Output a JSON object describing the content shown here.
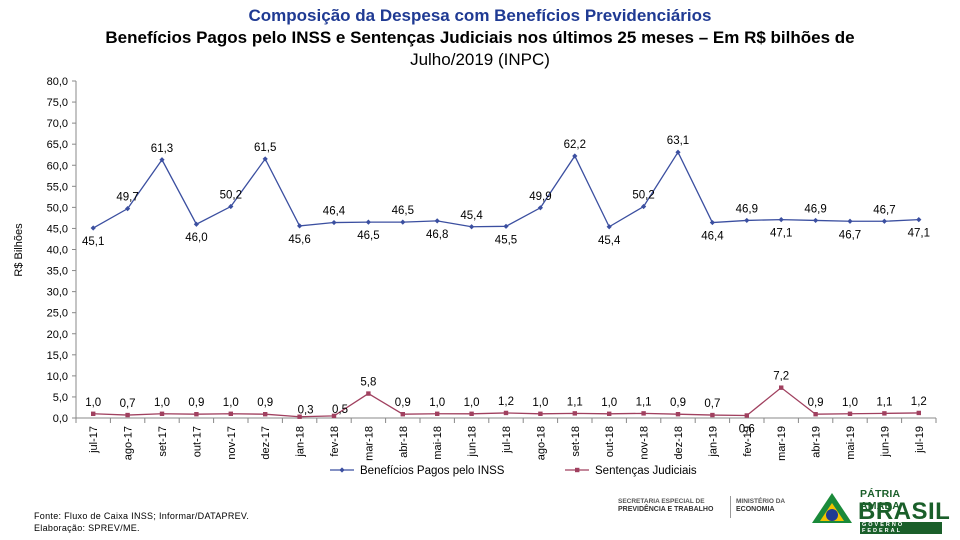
{
  "header": {
    "line1": "Composição da Despesa com Benefícios Previdenciários",
    "line2": "Benefícios Pagos pelo INSS e Sentenças Judiciais nos últimos 25 meses – Em R$ bilhões de",
    "line3": "Julho/2019 (INPC)"
  },
  "chart_data": {
    "type": "line",
    "ylabel": "R$ Bilhões",
    "xlabel": "",
    "ylim": [
      0,
      80
    ],
    "ytick_step": 5,
    "ytick_labels": [
      "0,0",
      "5,0",
      "10,0",
      "15,0",
      "20,0",
      "25,0",
      "30,0",
      "35,0",
      "40,0",
      "45,0",
      "50,0",
      "55,0",
      "60,0",
      "65,0",
      "70,0",
      "75,0",
      "80,0"
    ],
    "categories": [
      "jul-17",
      "ago-17",
      "set-17",
      "out-17",
      "nov-17",
      "dez-17",
      "jan-18",
      "fev-18",
      "mar-18",
      "abr-18",
      "mai-18",
      "jun-18",
      "jul-18",
      "ago-18",
      "set-18",
      "out-18",
      "nov-18",
      "dez-18",
      "jan-19",
      "fev-19",
      "mar-19",
      "abr-19",
      "mai-19",
      "jun-19",
      "jul-19"
    ],
    "series": [
      {
        "name": "Benefícios Pagos pelo INSS",
        "color": "#3b4fa0",
        "values": [
          45.1,
          49.7,
          61.3,
          46.0,
          50.2,
          61.5,
          45.6,
          46.4,
          46.5,
          46.5,
          46.8,
          45.4,
          45.5,
          49.9,
          62.2,
          45.4,
          50.2,
          63.1,
          46.4,
          46.9,
          47.1,
          46.9,
          46.7,
          46.7,
          47.1
        ],
        "labels": [
          "45,1",
          "49,7",
          "61,3",
          "46,0",
          "50,2",
          "61,5",
          "45,6",
          "46,4",
          "46,5",
          "46,5",
          "46,8",
          "45,4",
          "45,5",
          "49,9",
          "62,2",
          "45,4",
          "50,2",
          "63,1",
          "46,4",
          "46,9",
          "47,1",
          "46,9",
          "46,7",
          "46,7",
          "47,1"
        ],
        "label_pos": [
          "below",
          "above",
          "above",
          "below",
          "above",
          "above",
          "below",
          "above",
          "below",
          "above",
          "below",
          "above",
          "below",
          "above",
          "above",
          "below",
          "above",
          "above",
          "below",
          "above",
          "below",
          "above",
          "below",
          "above",
          "below"
        ]
      },
      {
        "name": "Sentenças Judiciais",
        "color": "#a0405f",
        "values": [
          1.0,
          0.7,
          1.0,
          0.9,
          1.0,
          0.9,
          0.3,
          0.5,
          5.8,
          0.9,
          1.0,
          1.0,
          1.2,
          1.0,
          1.1,
          1.0,
          1.1,
          0.9,
          0.7,
          0.6,
          7.2,
          0.9,
          1.0,
          1.1,
          1.2
        ],
        "labels": [
          "1,0",
          "0,7",
          "1,0",
          "0,9",
          "1,0",
          "0,9",
          "0,3",
          "0,5",
          "5,8",
          "0,9",
          "1,0",
          "1,0",
          "1,2",
          "1,0",
          "1,1",
          "1,0",
          "1,1",
          "0,9",
          "0,7",
          "0,6",
          "7,2",
          "0,9",
          "1,0",
          "1,1",
          "1,2"
        ],
        "label_pos": [
          "above",
          "above",
          "above",
          "above",
          "above",
          "above",
          "right",
          "right",
          "above",
          "above",
          "above",
          "above",
          "above",
          "above",
          "above",
          "above",
          "above",
          "above",
          "above",
          "below",
          "above",
          "above",
          "above",
          "above",
          "above"
        ]
      }
    ],
    "legend_position": "bottom-center"
  },
  "footer": {
    "source": "Fonte: Fluxo de Caixa INSS; Informar/DATAPREV.",
    "elaboration": "Elaboração: SPREV/ME."
  },
  "logos": {
    "secretaria_line1": "SECRETARIA ESPECIAL DE",
    "secretaria_line2": "PREVIDÊNCIA E TRABALHO",
    "ministerio_line1": "MINISTÉRIO DA",
    "ministerio_line2": "ECONOMIA",
    "brasil_top": "PÁTRIA AMADA",
    "brasil_main": "BRASIL",
    "brasil_sub": "GOVERNO FEDERAL"
  }
}
